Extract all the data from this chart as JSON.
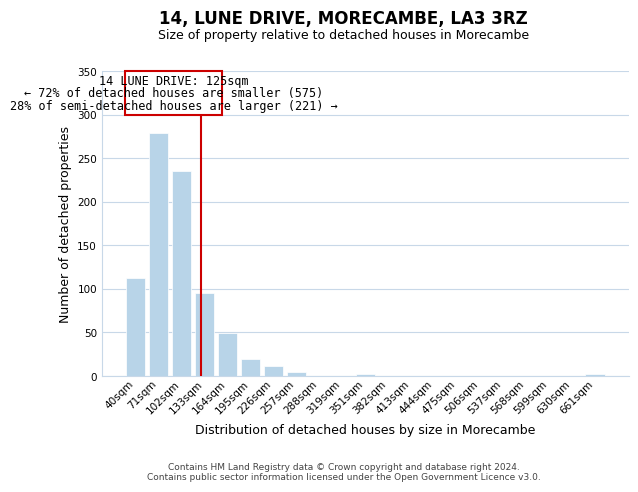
{
  "title": "14, LUNE DRIVE, MORECAMBE, LA3 3RZ",
  "subtitle": "Size of property relative to detached houses in Morecambe",
  "xlabel": "Distribution of detached houses by size in Morecambe",
  "ylabel": "Number of detached properties",
  "bar_labels": [
    "40sqm",
    "71sqm",
    "102sqm",
    "133sqm",
    "164sqm",
    "195sqm",
    "226sqm",
    "257sqm",
    "288sqm",
    "319sqm",
    "351sqm",
    "382sqm",
    "413sqm",
    "444sqm",
    "475sqm",
    "506sqm",
    "537sqm",
    "568sqm",
    "599sqm",
    "630sqm",
    "661sqm"
  ],
  "bar_values": [
    113,
    279,
    235,
    95,
    49,
    19,
    11,
    5,
    0,
    0,
    2,
    0,
    0,
    0,
    0,
    0,
    0,
    0,
    0,
    0,
    2
  ],
  "bar_color": "#b8d4e8",
  "reference_line_color": "#cc0000",
  "reference_line_x": 2.85,
  "ylim": [
    0,
    350
  ],
  "ann_line1": "14 LUNE DRIVE: 125sqm",
  "ann_line2": "← 72% of detached houses are smaller (575)",
  "ann_line3": "28% of semi-detached houses are larger (221) →",
  "footer_text": "Contains HM Land Registry data © Crown copyright and database right 2024.\nContains public sector information licensed under the Open Government Licence v3.0.",
  "background_color": "#ffffff",
  "grid_color": "#c8d8e8",
  "title_fontsize": 12,
  "subtitle_fontsize": 9,
  "axis_label_fontsize": 9,
  "tick_fontsize": 7.5,
  "annotation_fontsize": 8.5,
  "footer_fontsize": 6.5
}
